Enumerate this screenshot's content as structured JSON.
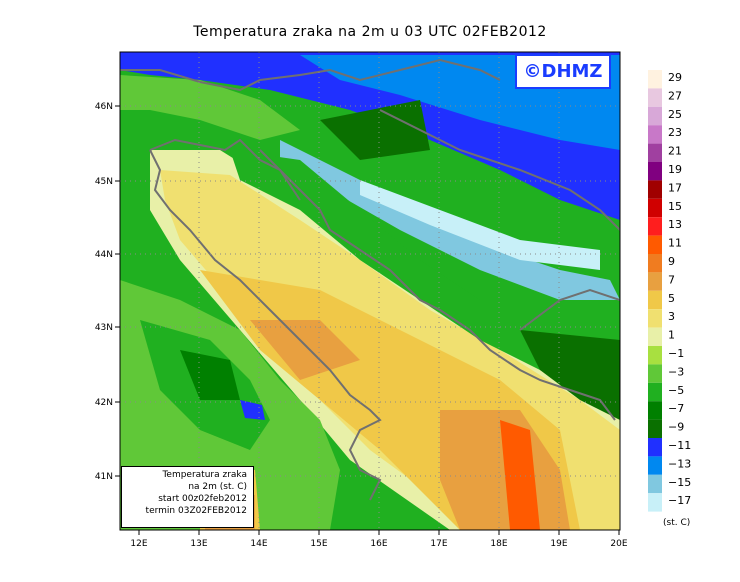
{
  "title": "Temperatura zraka na 2m u 03 UTC 02FEB2012",
  "brand": "©DHMZ",
  "info_box": {
    "line1": "Temperatura zraka",
    "line2": "na 2m (st. C)",
    "line3": "start 00z02feb2012",
    "line4": "termin 03Z02FEB2012"
  },
  "lat_ticks": [
    "46N",
    "45N",
    "44N",
    "43N",
    "42N",
    "41N"
  ],
  "lon_ticks": [
    "12E",
    "13E",
    "14E",
    "15E",
    "16E",
    "17E",
    "18E",
    "19E",
    "20E"
  ],
  "legend": {
    "unit": "(st. C)",
    "labels": [
      "29",
      "27",
      "25",
      "23",
      "21",
      "19",
      "17",
      "15",
      "13",
      "11",
      "9",
      "7",
      "5",
      "3",
      "1",
      "−1",
      "−3",
      "−5",
      "−7",
      "−9",
      "−11",
      "−13",
      "−15",
      "−17"
    ],
    "colors": [
      "#fff2e0",
      "#e8c8e0",
      "#d8a8d8",
      "#c878c8",
      "#a040a0",
      "#800080",
      "#a00000",
      "#d00000",
      "#ff1e1e",
      "#ff5a00",
      "#f07c20",
      "#e8a040",
      "#f0c848",
      "#f0e070",
      "#e8f0a8",
      "#a8e040",
      "#60c838",
      "#20b020",
      "#008000",
      "#0a7000",
      "#2030ff",
      "#0088f0",
      "#80c8e0",
      "#c8f0f8"
    ]
  },
  "colors": {
    "sea_warm": "#e8a040",
    "sea_mid": "#f0c848",
    "land_cold": "#0a7000",
    "mountain_cold": "#2030ff"
  }
}
